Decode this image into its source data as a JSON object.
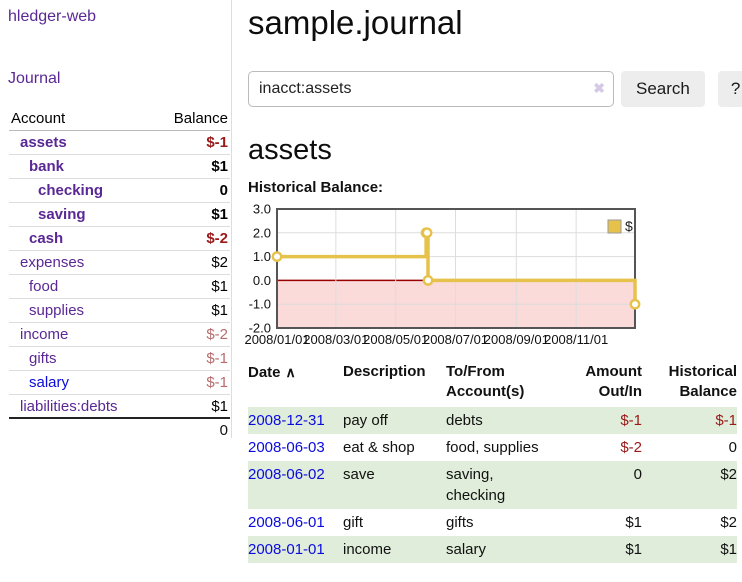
{
  "app": {
    "title": "hledger-web"
  },
  "colors": {
    "brand_purple": "#5a2894",
    "link_blue": "#0b0bdd",
    "negative_strong": "#9a1919",
    "negative_soft": "#b76c6c",
    "row_stripe_green": "#e0edda",
    "accent_gold": "#e6c24a"
  },
  "icons": {
    "clear": "✖",
    "sort_asc": "∧"
  },
  "sidebar": {
    "journal_link": "Journal",
    "accounts_table": {
      "headers": {
        "account": "Account",
        "balance": "Balance"
      },
      "rows": [
        {
          "name": "assets",
          "balance": "$-1"
        },
        {
          "name": "bank",
          "balance": "$1"
        },
        {
          "name": "checking",
          "balance": "0"
        },
        {
          "name": "saving",
          "balance": "$1"
        },
        {
          "name": "cash",
          "balance": "$-2"
        },
        {
          "name": "expenses",
          "balance": "$2"
        },
        {
          "name": "food",
          "balance": "$1"
        },
        {
          "name": "supplies",
          "balance": "$1"
        },
        {
          "name": "income",
          "balance": "$-2"
        },
        {
          "name": "gifts",
          "balance": "$-1"
        },
        {
          "name": "salary",
          "balance": "$-1"
        },
        {
          "name": "liabilities:debts",
          "balance": "$1"
        }
      ],
      "total": "0"
    }
  },
  "header": {
    "title": "sample.journal"
  },
  "search": {
    "query": "inacct:assets",
    "search_label": "Search",
    "help_label": "?"
  },
  "account_page": {
    "heading": "assets",
    "chart_label": "Historical Balance:"
  },
  "chart_data": {
    "type": "line",
    "title": "Historical Balance",
    "xlim": [
      "2008-01-01",
      "2008-12-31"
    ],
    "ylim": [
      -2.0,
      3.0
    ],
    "x_ticks": [
      "2008/01/01",
      "2008/03/01",
      "2008/05/01",
      "2008/07/01",
      "2008/09/01",
      "2008/11/01"
    ],
    "y_ticks": [
      "3.0",
      "2.0",
      "1.0",
      "0.0",
      "-1.0",
      "-2.0"
    ],
    "grid": true,
    "legend_position": "top-right",
    "series": [
      {
        "name": "$",
        "step": "after",
        "color": "#e6c24a",
        "points": [
          [
            "2008-01-01",
            1
          ],
          [
            "2008-06-01",
            2
          ],
          [
            "2008-06-02",
            2
          ],
          [
            "2008-06-03",
            0
          ],
          [
            "2008-12-31",
            -1
          ]
        ]
      }
    ],
    "style": {
      "negative_region_fill": "#fbdada",
      "zero_line_color": "#990000",
      "border_color": "#555555",
      "gridline_color": "#dddddd"
    }
  },
  "register_table": {
    "columns": {
      "date": "Date",
      "description": "Description",
      "accounts": "To/From Account(s)",
      "amount": "Amount Out/In",
      "balance": "Historical Balance"
    },
    "rows": [
      {
        "date": "2008-12-31",
        "description": "pay off",
        "accounts": "debts",
        "amount": "$-1",
        "balance": "$-1"
      },
      {
        "date": "2008-06-03",
        "description": "eat & shop",
        "accounts": "food, supplies",
        "amount": "$-2",
        "balance": "0"
      },
      {
        "date": "2008-06-02",
        "description": "save",
        "accounts": "saving, checking",
        "amount": "0",
        "balance": "$2"
      },
      {
        "date": "2008-06-01",
        "description": "gift",
        "accounts": "gifts",
        "amount": "$1",
        "balance": "$2"
      },
      {
        "date": "2008-01-01",
        "description": "income",
        "accounts": "salary",
        "amount": "$1",
        "balance": "$1"
      }
    ]
  }
}
